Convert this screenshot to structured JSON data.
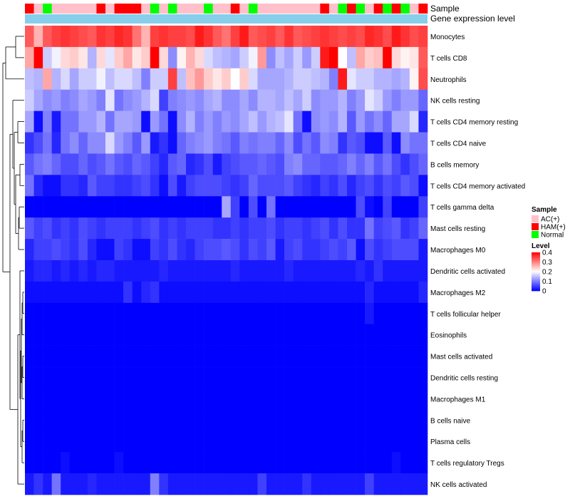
{
  "chart_data": {
    "type": "heatmap",
    "annotation_labels": {
      "sample": "Sample",
      "gene_expression": "Gene expression level"
    },
    "sample_groups": [
      "HAM(+)",
      "AC(+)",
      "Normal",
      "AC(+)",
      "AC(+)",
      "AC(+)",
      "AC(+)",
      "AC(+)",
      "HAM(+)",
      "AC(+)",
      "HAM(+)",
      "HAM(+)",
      "HAM(+)",
      "AC(+)",
      "Normal",
      "AC(+)",
      "Normal",
      "AC(+)",
      "AC(+)",
      "AC(+)",
      "Normal",
      "AC(+)",
      "AC(+)",
      "HAM(+)",
      "AC(+)",
      "Normal",
      "AC(+)",
      "AC(+)",
      "AC(+)",
      "AC(+)",
      "AC(+)",
      "AC(+)",
      "AC(+)",
      "HAM(+)",
      "AC(+)",
      "Normal",
      "HAM(+)",
      "Normal",
      "AC(+)",
      "HAM(+)",
      "Normal",
      "HAM(+)",
      "Normal",
      "AC(+)",
      "HAM(+)"
    ],
    "rows": [
      {
        "name": "Monocytes",
        "values": [
          0.33,
          0.26,
          0.33,
          0.35,
          0.36,
          0.35,
          0.34,
          0.33,
          0.36,
          0.35,
          0.37,
          0.36,
          0.31,
          0.26,
          0.35,
          0.36,
          0.35,
          0.35,
          0.34,
          0.38,
          0.36,
          0.33,
          0.31,
          0.35,
          0.38,
          0.33,
          0.34,
          0.35,
          0.33,
          0.36,
          0.33,
          0.34,
          0.35,
          0.36,
          0.35,
          0.34,
          0.35,
          0.34,
          0.37,
          0.36,
          0.34,
          0.38,
          0.36,
          0.34,
          0.35
        ]
      },
      {
        "name": "T cells CD8",
        "values": [
          0.27,
          0.4,
          0.16,
          0.19,
          0.23,
          0.24,
          0.22,
          0.14,
          0.23,
          0.18,
          0.24,
          0.27,
          0.22,
          0.24,
          0.4,
          0.23,
          0.11,
          0.21,
          0.26,
          0.23,
          0.17,
          0.15,
          0.14,
          0.13,
          0.16,
          0.19,
          0.28,
          0.11,
          0.15,
          0.13,
          0.16,
          0.12,
          0.16,
          0.38,
          0.4,
          0.2,
          0.15,
          0.27,
          0.24,
          0.25,
          0.4,
          0.23,
          0.21,
          0.22,
          0.33
        ]
      },
      {
        "name": "Neutrophils",
        "values": [
          0.15,
          0.14,
          0.27,
          0.14,
          0.17,
          0.13,
          0.16,
          0.16,
          0.19,
          0.15,
          0.17,
          0.17,
          0.15,
          0.1,
          0.16,
          0.16,
          0.35,
          0.15,
          0.25,
          0.28,
          0.24,
          0.22,
          0.24,
          0.2,
          0.24,
          0.17,
          0.13,
          0.13,
          0.13,
          0.14,
          0.16,
          0.16,
          0.15,
          0.14,
          0.1,
          0.38,
          0.18,
          0.16,
          0.16,
          0.14,
          0.14,
          0.13,
          0.14,
          0.21,
          0.34
        ]
      },
      {
        "name": "NK cells resting",
        "values": [
          0.16,
          0.13,
          0.11,
          0.12,
          0.1,
          0.11,
          0.13,
          0.12,
          0.1,
          0.18,
          0.09,
          0.11,
          0.12,
          0.14,
          0.17,
          0.05,
          0.1,
          0.11,
          0.12,
          0.11,
          0.13,
          0.14,
          0.11,
          0.11,
          0.13,
          0.11,
          0.14,
          0.14,
          0.13,
          0.15,
          0.13,
          0.16,
          0.11,
          0.12,
          0.12,
          0.14,
          0.1,
          0.12,
          0.18,
          0.16,
          0.12,
          0.1,
          0.12,
          0.12,
          0.08
        ]
      },
      {
        "name": "T cells CD4 memory resting",
        "values": [
          0.13,
          0.01,
          0.1,
          0.02,
          0.09,
          0.09,
          0.12,
          0.12,
          0.14,
          0.09,
          0.13,
          0.13,
          0.12,
          0.01,
          0.12,
          0.09,
          0.01,
          0.11,
          0.14,
          0.1,
          0.12,
          0.1,
          0.12,
          0.11,
          0.13,
          0.15,
          0.12,
          0.14,
          0.15,
          0.18,
          0.09,
          0.01,
          0.11,
          0.12,
          0.11,
          0.14,
          0.07,
          0.12,
          0.09,
          0.11,
          0.08,
          0.13,
          0.13,
          0.17,
          0.03
        ]
      },
      {
        "name": "T cells CD4 naive",
        "values": [
          0.04,
          0.06,
          0.09,
          0.03,
          0.09,
          0.11,
          0.08,
          0.11,
          0.11,
          0.17,
          0.12,
          0.1,
          0.07,
          0.12,
          0.02,
          0.04,
          0.01,
          0.08,
          0.1,
          0.11,
          0.12,
          0.1,
          0.09,
          0.07,
          0.1,
          0.09,
          0.1,
          0.1,
          0.08,
          0.11,
          0.06,
          0.09,
          0.07,
          0.11,
          0.1,
          0.04,
          0.07,
          0.06,
          0.01,
          0.01,
          0.07,
          0.01,
          0.11,
          0.09,
          0.09
        ]
      },
      {
        "name": "B cells memory",
        "values": [
          0.07,
          0.09,
          0.1,
          0.08,
          0.06,
          0.06,
          0.08,
          0.06,
          0.07,
          0.09,
          0.07,
          0.06,
          0.08,
          0.07,
          0.05,
          0.03,
          0.07,
          0.08,
          0.03,
          0.04,
          0.06,
          0.02,
          0.05,
          0.06,
          0.07,
          0.07,
          0.08,
          0.07,
          0.06,
          0.1,
          0.11,
          0.08,
          0.08,
          0.07,
          0.07,
          0.08,
          0.1,
          0.08,
          0.1,
          0.07,
          0.09,
          0.06,
          0.04,
          0.06,
          0.08
        ]
      },
      {
        "name": "T cells CD4 memory activated",
        "values": [
          0.09,
          0.03,
          0.01,
          0.01,
          0.04,
          0.04,
          0.03,
          0.07,
          0.05,
          0.05,
          0.04,
          0.04,
          0.05,
          0.06,
          0.04,
          0.01,
          0.06,
          0.02,
          0.05,
          0.06,
          0.06,
          0.06,
          0.05,
          0.04,
          0.05,
          0.08,
          0.06,
          0.06,
          0.06,
          0.07,
          0.05,
          0.04,
          0.03,
          0.05,
          0.04,
          0.06,
          0.03,
          0.05,
          0.06,
          0.04,
          0.06,
          0.05,
          0.07,
          0.06,
          0.01
        ]
      },
      {
        "name": "T cells gamma delta",
        "values": [
          0.0,
          0.0,
          0.0,
          0.0,
          0.0,
          0.0,
          0.0,
          0.0,
          0.0,
          0.0,
          0.0,
          0.0,
          0.0,
          0.0,
          0.0,
          0.0,
          0.0,
          0.0,
          0.0,
          0.0,
          0.0,
          0.0,
          0.13,
          0.05,
          0.0,
          0.06,
          0.0,
          0.09,
          0.0,
          0.0,
          0.0,
          0.0,
          0.0,
          0.0,
          0.0,
          0.0,
          0.0,
          0.06,
          0.01,
          0.0,
          0.05,
          0.0,
          0.0,
          0.0,
          0.05
        ]
      },
      {
        "name": "Mast cells resting",
        "values": [
          0.07,
          0.05,
          0.06,
          0.04,
          0.05,
          0.04,
          0.06,
          0.05,
          0.04,
          0.05,
          0.05,
          0.05,
          0.04,
          0.05,
          0.06,
          0.04,
          0.05,
          0.04,
          0.05,
          0.05,
          0.05,
          0.04,
          0.04,
          0.05,
          0.04,
          0.05,
          0.05,
          0.06,
          0.04,
          0.05,
          0.05,
          0.04,
          0.05,
          0.06,
          0.04,
          0.06,
          0.04,
          0.04,
          0.09,
          0.05,
          0.06,
          0.07,
          0.04,
          0.05,
          0.08
        ]
      },
      {
        "name": "Macrophages M0",
        "values": [
          0.03,
          0.05,
          0.05,
          0.06,
          0.05,
          0.04,
          0.06,
          0.03,
          0.01,
          0.01,
          0.05,
          0.04,
          0.01,
          0.01,
          0.05,
          0.04,
          0.06,
          0.04,
          0.03,
          0.05,
          0.06,
          0.06,
          0.07,
          0.06,
          0.04,
          0.06,
          0.05,
          0.07,
          0.02,
          0.05,
          0.06,
          0.04,
          0.04,
          0.05,
          0.06,
          0.05,
          0.07,
          0.01,
          0.06,
          0.04,
          0.05,
          0.06,
          0.06,
          0.06,
          0.02
        ]
      },
      {
        "name": "Dendritic cells activated",
        "values": [
          0.02,
          0.03,
          0.03,
          0.02,
          0.03,
          0.02,
          0.03,
          0.02,
          0.03,
          0.03,
          0.02,
          0.02,
          0.02,
          0.02,
          0.02,
          0.03,
          0.02,
          0.02,
          0.02,
          0.02,
          0.02,
          0.02,
          0.02,
          0.03,
          0.02,
          0.02,
          0.02,
          0.02,
          0.02,
          0.03,
          0.02,
          0.02,
          0.02,
          0.02,
          0.02,
          0.02,
          0.02,
          0.03,
          0.02,
          0.04,
          0.02,
          0.02,
          0.02,
          0.02,
          0.02
        ]
      },
      {
        "name": "Macrophages M2",
        "values": [
          0.01,
          0.01,
          0.01,
          0.01,
          0.01,
          0.01,
          0.01,
          0.01,
          0.01,
          0.01,
          0.01,
          0.04,
          0.01,
          0.03,
          0.04,
          0.01,
          0.01,
          0.01,
          0.01,
          0.01,
          0.01,
          0.01,
          0.01,
          0.01,
          0.01,
          0.01,
          0.01,
          0.01,
          0.01,
          0.01,
          0.01,
          0.01,
          0.01,
          0.01,
          0.01,
          0.01,
          0.01,
          0.01,
          0.03,
          0.01,
          0.01,
          0.01,
          0.01,
          0.01,
          0.03
        ]
      },
      {
        "name": "T cells follicular helper",
        "values": [
          0.0,
          0.0,
          0.0,
          0.0,
          0.0,
          0.0,
          0.0,
          0.0,
          0.0,
          0.0,
          0.0,
          0.0,
          0.0,
          0.0,
          0.0,
          0.0,
          0.0,
          0.0,
          0.0,
          0.0,
          0.0,
          0.0,
          0.0,
          0.0,
          0.0,
          0.0,
          0.0,
          0.0,
          0.0,
          0.0,
          0.0,
          0.0,
          0.0,
          0.0,
          0.0,
          0.0,
          0.0,
          0.0,
          0.02,
          0.0,
          0.0,
          0.0,
          0.0,
          0.0,
          0.0
        ]
      },
      {
        "name": "Eosinophils",
        "values": [
          0.0,
          0.0,
          0.0,
          0.0,
          0.0,
          0.0,
          0.0,
          0.0,
          0.0,
          0.0,
          0.0,
          0.0,
          0.0,
          0.0,
          0.0,
          0.0,
          0.0,
          0.0,
          0.0,
          0.0,
          0.0,
          0.0,
          0.0,
          0.0,
          0.0,
          0.0,
          0.0,
          0.0,
          0.0,
          0.0,
          0.0,
          0.0,
          0.0,
          0.0,
          0.0,
          0.0,
          0.0,
          0.0,
          0.0,
          0.0,
          0.0,
          0.0,
          0.0,
          0.0,
          0.0
        ]
      },
      {
        "name": "Mast cells activated",
        "values": [
          0.0,
          0.0,
          0.0,
          0.0,
          0.0,
          0.0,
          0.0,
          0.0,
          0.0,
          0.0,
          0.0,
          0.0,
          0.0,
          0.0,
          0.0,
          0.0,
          0.0,
          0.0,
          0.0,
          0.0,
          0.0,
          0.0,
          0.0,
          0.0,
          0.0,
          0.0,
          0.0,
          0.0,
          0.0,
          0.0,
          0.0,
          0.0,
          0.0,
          0.0,
          0.0,
          0.0,
          0.0,
          0.0,
          0.0,
          0.0,
          0.0,
          0.0,
          0.0,
          0.0,
          0.0
        ]
      },
      {
        "name": "Dendritic cells resting",
        "values": [
          0.0,
          0.0,
          0.0,
          0.0,
          0.0,
          0.0,
          0.0,
          0.0,
          0.0,
          0.0,
          0.0,
          0.0,
          0.0,
          0.0,
          0.0,
          0.0,
          0.0,
          0.0,
          0.0,
          0.0,
          0.0,
          0.0,
          0.0,
          0.0,
          0.0,
          0.0,
          0.0,
          0.0,
          0.0,
          0.0,
          0.0,
          0.0,
          0.0,
          0.0,
          0.0,
          0.0,
          0.0,
          0.0,
          0.0,
          0.0,
          0.0,
          0.0,
          0.0,
          0.0,
          0.0
        ]
      },
      {
        "name": "Macrophages M1",
        "values": [
          0.0,
          0.0,
          0.0,
          0.0,
          0.0,
          0.0,
          0.0,
          0.0,
          0.0,
          0.0,
          0.0,
          0.0,
          0.0,
          0.0,
          0.0,
          0.0,
          0.0,
          0.0,
          0.0,
          0.0,
          0.0,
          0.0,
          0.0,
          0.0,
          0.0,
          0.0,
          0.0,
          0.0,
          0.0,
          0.0,
          0.0,
          0.0,
          0.0,
          0.0,
          0.0,
          0.0,
          0.0,
          0.0,
          0.0,
          0.0,
          0.0,
          0.0,
          0.0,
          0.0,
          0.0
        ]
      },
      {
        "name": "B cells naive",
        "values": [
          0.0,
          0.0,
          0.0,
          0.0,
          0.0,
          0.0,
          0.0,
          0.0,
          0.0,
          0.0,
          0.0,
          0.0,
          0.0,
          0.0,
          0.0,
          0.0,
          0.0,
          0.0,
          0.0,
          0.0,
          0.0,
          0.0,
          0.0,
          0.0,
          0.0,
          0.0,
          0.0,
          0.0,
          0.0,
          0.0,
          0.0,
          0.0,
          0.0,
          0.0,
          0.0,
          0.0,
          0.0,
          0.0,
          0.0,
          0.0,
          0.0,
          0.0,
          0.0,
          0.0,
          0.0
        ]
      },
      {
        "name": "Plasma cells",
        "values": [
          0.0,
          0.0,
          0.0,
          0.0,
          0.0,
          0.0,
          0.0,
          0.0,
          0.0,
          0.0,
          0.0,
          0.0,
          0.0,
          0.0,
          0.0,
          0.0,
          0.0,
          0.0,
          0.0,
          0.0,
          0.0,
          0.0,
          0.0,
          0.0,
          0.0,
          0.0,
          0.0,
          0.0,
          0.0,
          0.0,
          0.0,
          0.0,
          0.0,
          0.0,
          0.0,
          0.0,
          0.0,
          0.0,
          0.0,
          0.0,
          0.0,
          0.0,
          0.0,
          0.0,
          0.0
        ]
      },
      {
        "name": "T cells regulatory  Tregs",
        "values": [
          0.0,
          0.0,
          0.0,
          0.0,
          0.01,
          0.0,
          0.0,
          0.0,
          0.0,
          0.0,
          0.01,
          0.0,
          0.0,
          0.0,
          0.0,
          0.0,
          0.0,
          0.0,
          0.0,
          0.0,
          0.0,
          0.0,
          0.0,
          0.0,
          0.0,
          0.0,
          0.0,
          0.0,
          0.0,
          0.0,
          0.0,
          0.0,
          0.0,
          0.0,
          0.0,
          0.0,
          0.0,
          0.0,
          0.0,
          0.0,
          0.0,
          0.01,
          0.0,
          0.0,
          0.0
        ]
      },
      {
        "name": "NK cells activated",
        "values": [
          0.02,
          0.04,
          0.02,
          0.09,
          0.02,
          0.02,
          0.02,
          0.03,
          0.02,
          0.02,
          0.02,
          0.02,
          0.02,
          0.02,
          0.1,
          0.04,
          0.02,
          0.02,
          0.02,
          0.02,
          0.02,
          0.02,
          0.02,
          0.02,
          0.02,
          0.02,
          0.05,
          0.02,
          0.02,
          0.02,
          0.02,
          0.04,
          0.02,
          0.02,
          0.02,
          0.02,
          0.02,
          0.02,
          0.05,
          0.02,
          0.02,
          0.02,
          0.02,
          0.02,
          0.02
        ]
      }
    ],
    "legend_sample": {
      "title": "Sample",
      "items": [
        {
          "label": "AC(+)",
          "color": "#ffc0cb"
        },
        {
          "label": "HAM(+)",
          "color": "#ff0000"
        },
        {
          "label": "Normal",
          "color": "#00ff00"
        }
      ]
    },
    "legend_level": {
      "title": "Level",
      "ticks": [
        "0.4",
        "0.3",
        "0.2",
        "0.1",
        "0"
      ],
      "tick_values": [
        0.4,
        0.3,
        0.2,
        0.1,
        0
      ],
      "range": [
        0,
        0.4
      ]
    },
    "color_scale": {
      "low": "#0000ff",
      "mid": "#ffffff",
      "high": "#ff0000",
      "mid_value": 0.2
    },
    "gene_expression_color": "#87ceeb",
    "dendrogram_color": "#000000"
  }
}
